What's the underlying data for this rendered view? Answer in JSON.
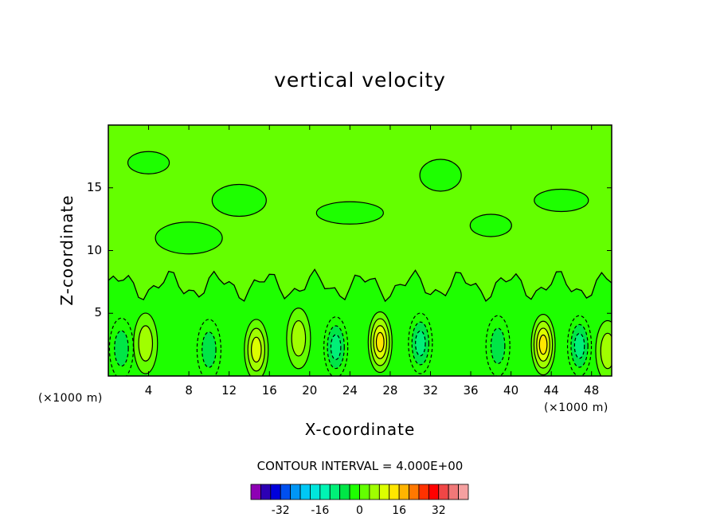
{
  "chart_data": {
    "type": "heatmap",
    "title": "vertical velocity",
    "xlabel": "X-coordinate",
    "ylabel": "Z-coordinate",
    "x_unit_left": "(×1000 m)",
    "x_unit_right": "(×1000 m)",
    "xlim": [
      0,
      50
    ],
    "ylim": [
      0,
      20
    ],
    "x_ticks": [
      "4",
      "8",
      "12",
      "16",
      "20",
      "24",
      "28",
      "32",
      "36",
      "40",
      "44",
      "48"
    ],
    "y_ticks": [
      "5",
      "10",
      "15"
    ],
    "contour_interval_text": "CONTOUR INTERVAL = 4.000E+00",
    "colorbar": {
      "levels": [
        -36,
        -32,
        -28,
        -24,
        -20,
        -16,
        -12,
        -8,
        -4,
        0,
        4,
        8,
        12,
        16,
        20,
        24,
        28,
        32,
        36
      ],
      "tick_labels": [
        "-32",
        "-16",
        "0",
        "16",
        "32"
      ],
      "colors": [
        "#8e00b4",
        "#2d00b4",
        "#0000dc",
        "#0050f0",
        "#0096f5",
        "#00c8f5",
        "#00e6dc",
        "#00f5b4",
        "#00f078",
        "#00e646",
        "#1eff00",
        "#64ff00",
        "#a0ff00",
        "#dcff00",
        "#ffe600",
        "#ffb400",
        "#ff7800",
        "#ff3200",
        "#ff0000",
        "#f04646",
        "#f07878",
        "#f5a0a0"
      ]
    },
    "cells": [
      {
        "x": 1.3,
        "z": 2.2,
        "value": -8
      },
      {
        "x": 3.7,
        "z": 2.6,
        "value": 8
      },
      {
        "x": 10.0,
        "z": 2.1,
        "value": -8
      },
      {
        "x": 14.7,
        "z": 2.1,
        "value": 12
      },
      {
        "x": 18.9,
        "z": 3.0,
        "value": 8
      },
      {
        "x": 22.6,
        "z": 2.3,
        "value": -12
      },
      {
        "x": 27.0,
        "z": 2.7,
        "value": 16
      },
      {
        "x": 31.0,
        "z": 2.6,
        "value": -12
      },
      {
        "x": 38.7,
        "z": 2.4,
        "value": -8
      },
      {
        "x": 43.2,
        "z": 2.5,
        "value": 16
      },
      {
        "x": 46.8,
        "z": 2.4,
        "value": -12
      },
      {
        "x": 49.6,
        "z": 2.0,
        "value": 8
      }
    ],
    "legend": "bottom"
  }
}
